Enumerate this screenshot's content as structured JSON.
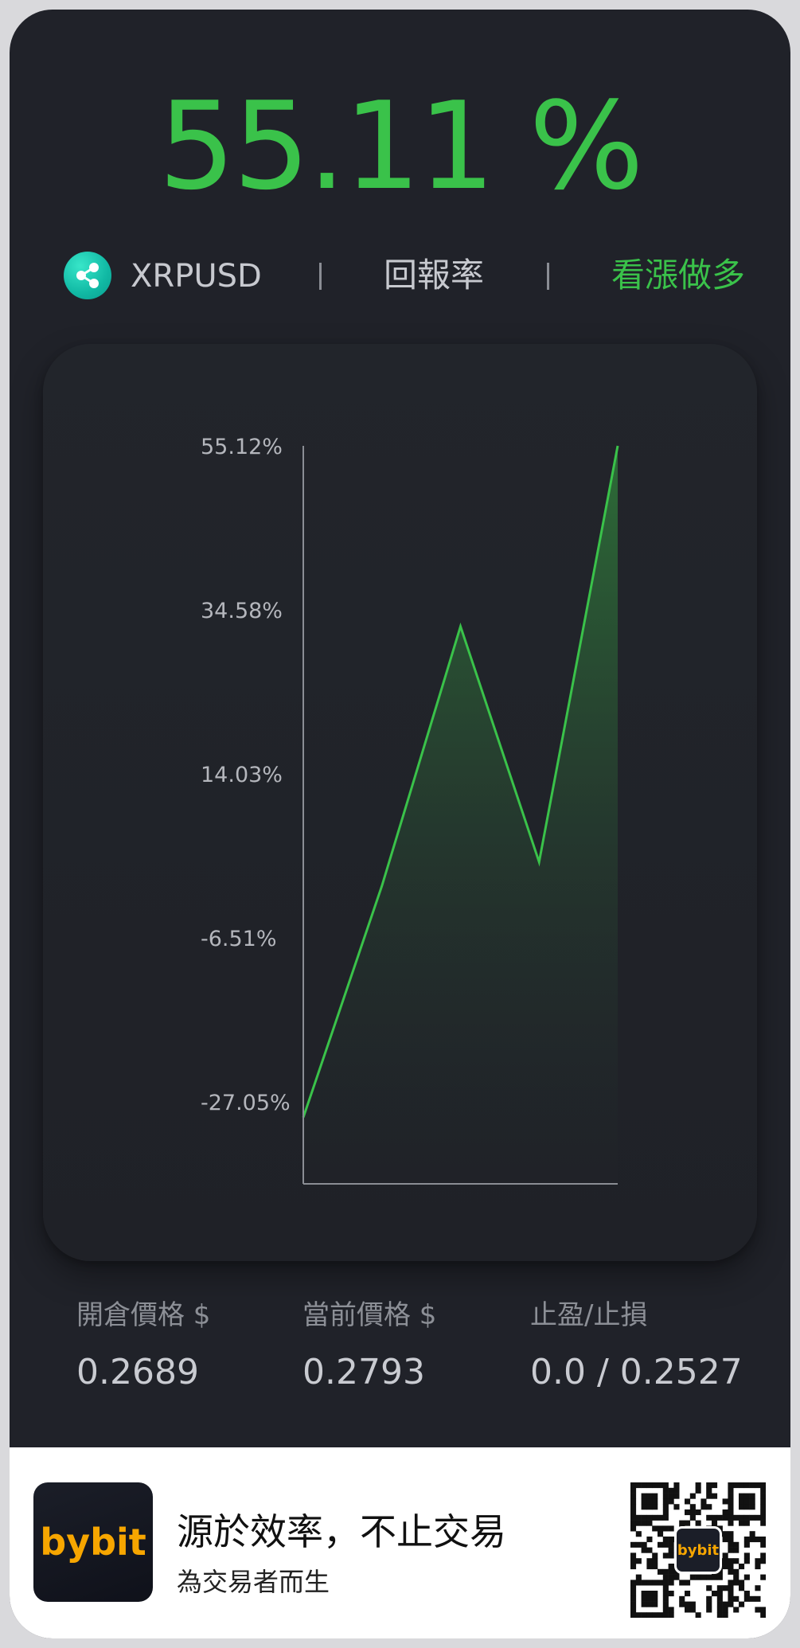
{
  "header": {
    "return_value": "55.11 %"
  },
  "info": {
    "pair": "XRPUSD",
    "pair_icon": "xrp-coin-icon",
    "metric": "回報率",
    "direction": "看漲做多"
  },
  "colors": {
    "background": "#202229",
    "accent_green": "#3ac24a",
    "brand_orange": "#f7a600"
  },
  "chart_data": {
    "type": "area",
    "ylim": [
      -37.32,
      55.12
    ],
    "ytick_labels": [
      "55.12%",
      "34.58%",
      "14.03%",
      "-6.51%",
      "-27.05%"
    ],
    "yticks": [
      55.12,
      34.58,
      14.03,
      -6.51,
      -27.05
    ],
    "x": [
      0,
      1,
      2,
      3,
      4
    ],
    "values": [
      -29.0,
      0.0,
      32.5,
      3.0,
      55.12
    ],
    "line_color": "#3ac24a",
    "grid": false
  },
  "stats": [
    {
      "label": "開倉價格 $",
      "value": "0.2689"
    },
    {
      "label": "當前價格 $",
      "value": "0.2793"
    },
    {
      "label": "止盈/止損",
      "value": "0.0 / 0.2527"
    }
  ],
  "footer": {
    "brand": "bybit",
    "slogan": "源於效率，不止交易",
    "sub_slogan": "為交易者而生",
    "qr_icon": "qr-code-icon",
    "qr_brand": "bybit"
  }
}
